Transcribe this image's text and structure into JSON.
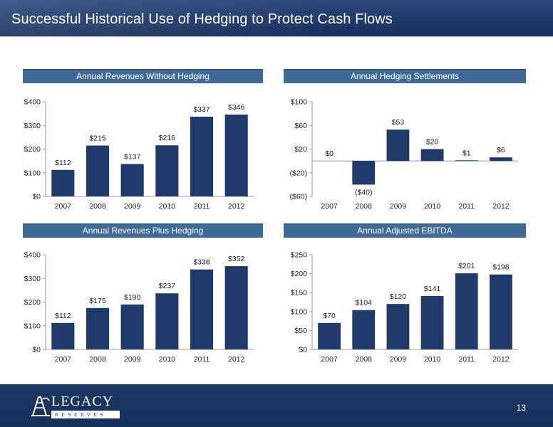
{
  "header": {
    "title": "Successful Historical Use of Hedging to Protect Cash Flows"
  },
  "footer": {
    "page_number": "13",
    "logo": {
      "name": "LEGACY",
      "sub": "RESERVES",
      "icon": "oil-derrick-logo-icon"
    }
  },
  "colors": {
    "bar": "#1f3a6b",
    "panel_title": "#3f6a97",
    "header": "#1f3a6b",
    "axis": "#9a9a9a"
  },
  "chart_data": [
    {
      "type": "bar",
      "title": "Annual Revenues Without Hedging",
      "categories": [
        "2007",
        "2008",
        "2009",
        "2010",
        "2011",
        "2012"
      ],
      "values": [
        112,
        215,
        137,
        216,
        337,
        346
      ],
      "value_labels": [
        "$112",
        "$215",
        "$137",
        "$216",
        "$337",
        "$346"
      ],
      "ylim": [
        0,
        400
      ],
      "yticks": [
        0,
        100,
        200,
        300,
        400
      ],
      "ytick_labels": [
        "$0",
        "$100",
        "$200",
        "$300",
        "$400"
      ]
    },
    {
      "type": "bar",
      "title": "Annual Hedging Settlements",
      "categories": [
        "2007",
        "2008",
        "2009",
        "2010",
        "2011",
        "2012"
      ],
      "values": [
        0,
        -40,
        53,
        20,
        1,
        6
      ],
      "value_labels": [
        "$0",
        "($40)",
        "$53",
        "$20",
        "$1",
        "$6"
      ],
      "ylim": [
        -60,
        100
      ],
      "yticks": [
        -60,
        -20,
        20,
        60,
        100
      ],
      "ytick_labels": [
        "($60)",
        "($20)",
        "$20",
        "$60",
        "$100"
      ]
    },
    {
      "type": "bar",
      "title": "Annual Revenues Plus Hedging",
      "categories": [
        "2007",
        "2008",
        "2009",
        "2010",
        "2011",
        "2012"
      ],
      "values": [
        112,
        175,
        190,
        237,
        338,
        352
      ],
      "value_labels": [
        "$112",
        "$175",
        "$190",
        "$237",
        "$338",
        "$352"
      ],
      "ylim": [
        0,
        400
      ],
      "yticks": [
        0,
        100,
        200,
        300,
        400
      ],
      "ytick_labels": [
        "$0",
        "$100",
        "$200",
        "$300",
        "$400"
      ]
    },
    {
      "type": "bar",
      "title": "Annual Adjusted EBITDA",
      "categories": [
        "2007",
        "2008",
        "2009",
        "2010",
        "2011",
        "2012"
      ],
      "values": [
        70,
        104,
        120,
        141,
        201,
        198
      ],
      "value_labels": [
        "$70",
        "$104",
        "$120",
        "$141",
        "$201",
        "$198"
      ],
      "ylim": [
        0,
        250
      ],
      "yticks": [
        0,
        50,
        100,
        150,
        200,
        250
      ],
      "ytick_labels": [
        "$0",
        "$50",
        "$100",
        "$150",
        "$200",
        "$250"
      ]
    }
  ]
}
